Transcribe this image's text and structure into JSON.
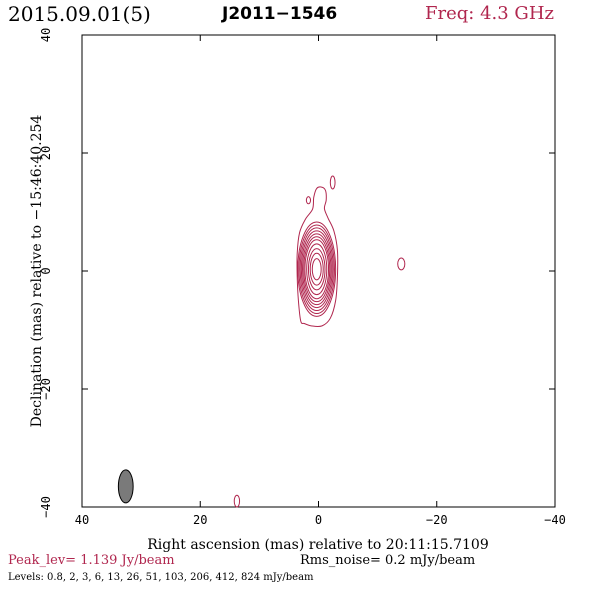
{
  "header": {
    "epoch": "2015.09.01(5)",
    "source": "J2011−1546",
    "frequency": "Freq: 4.3 GHz"
  },
  "axes": {
    "xlabel": "Right ascension (mas) relative to 20:11:15.7109",
    "ylabel": "Declination (mas) relative to −15:46:40.254"
  },
  "footer": {
    "peak": "Peak_lev=  1.139 Jy/beam",
    "rms": "Rms_noise=  0.2 mJy/beam",
    "levels": "Levels: 0.8,   2,   3,   6,  13,  26,  51, 103, 206, 412, 824 mJy/beam"
  },
  "colors": {
    "contour": "#b0264e",
    "frequency_text": "#b0264e",
    "beam_fill": "#7a7a7a",
    "axes": "#000000"
  },
  "chart_data": {
    "type": "contour",
    "xlim": [
      40,
      -40
    ],
    "ylim": [
      -40,
      40
    ],
    "x_ticks": [
      40,
      20,
      0,
      -20,
      -40
    ],
    "y_ticks": [
      -40,
      -20,
      0,
      20,
      40
    ],
    "x_tick_labels": [
      "40",
      "20",
      "0",
      "−20",
      "−40"
    ],
    "y_tick_labels": [
      "−40",
      "−20",
      "0",
      "20",
      "40"
    ],
    "peak_jy_per_beam": 1.139,
    "rms_noise_mjy_per_beam": 0.2,
    "contour_levels_mjy_per_beam": [
      0.8,
      2,
      3,
      6,
      13,
      26,
      51,
      103,
      206,
      412,
      824
    ],
    "core": {
      "x": 0.3,
      "y": 0.3,
      "contours": [
        {
          "rx": 3.2,
          "ry": 8.0
        },
        {
          "rx": 3.0,
          "ry": 7.5
        },
        {
          "rx": 2.8,
          "ry": 7.0
        },
        {
          "rx": 2.6,
          "ry": 6.5
        },
        {
          "rx": 2.4,
          "ry": 6.0
        },
        {
          "rx": 2.2,
          "ry": 5.5
        },
        {
          "rx": 2.0,
          "ry": 5.0
        },
        {
          "rx": 1.7,
          "ry": 4.3
        },
        {
          "rx": 1.4,
          "ry": 3.5
        },
        {
          "rx": 1.1,
          "ry": 2.7
        },
        {
          "rx": 0.75,
          "ry": 1.8
        }
      ]
    },
    "jet_outline": [
      [
        3.0,
        -8.5
      ],
      [
        3.4,
        -5.0
      ],
      [
        3.6,
        -1.0
      ],
      [
        3.6,
        3.0
      ],
      [
        3.2,
        6.5
      ],
      [
        2.2,
        8.8
      ],
      [
        1.0,
        10.5
      ],
      [
        0.8,
        12.5
      ],
      [
        0.3,
        14.0
      ],
      [
        -0.6,
        14.2
      ],
      [
        -1.2,
        13.6
      ],
      [
        -1.3,
        12.0
      ],
      [
        -1.0,
        10.6
      ],
      [
        -1.6,
        9.0
      ],
      [
        -2.6,
        6.8
      ],
      [
        -3.2,
        3.5
      ],
      [
        -3.2,
        -1.0
      ],
      [
        -2.9,
        -5.0
      ],
      [
        -2.0,
        -8.0
      ],
      [
        -0.6,
        -9.3
      ],
      [
        1.2,
        -9.3
      ],
      [
        2.4,
        -8.9
      ]
    ],
    "islands": [
      {
        "x": 1.7,
        "y": 12.0,
        "rx": 0.35,
        "ry": 0.6
      },
      {
        "x": -2.4,
        "y": 15.0,
        "rx": 0.4,
        "ry": 1.1
      },
      {
        "x": -14.0,
        "y": 1.2,
        "rx": 0.6,
        "ry": 1.0
      },
      {
        "x": 13.8,
        "y": -39.0,
        "rx": 0.45,
        "ry": 1.0
      }
    ],
    "beam": {
      "x": 32.6,
      "y": -36.5,
      "rx": 1.25,
      "ry": 2.8
    }
  }
}
